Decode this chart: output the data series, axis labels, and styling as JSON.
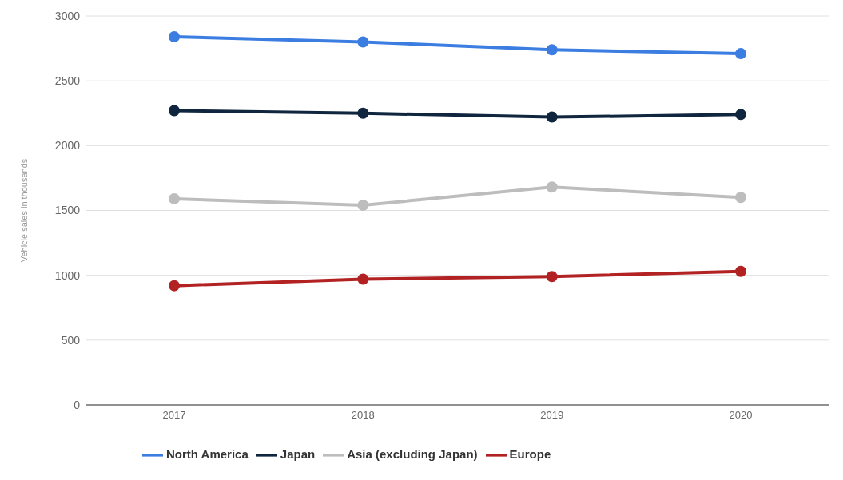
{
  "chart_data": {
    "type": "line",
    "ylabel": "Vehicle sales in thousands",
    "categories": [
      "2017",
      "2018",
      "2019",
      "2020"
    ],
    "series": [
      {
        "name": "North America",
        "color": "#3b7de0",
        "values": [
          2840,
          2800,
          2740,
          2710
        ]
      },
      {
        "name": "Japan",
        "color": "#10263f",
        "values": [
          2270,
          2250,
          2220,
          2240
        ]
      },
      {
        "name": "Asia (excluding Japan)",
        "color": "#bdbdbd",
        "values": [
          1590,
          1540,
          1680,
          1600
        ]
      },
      {
        "name": "Europe",
        "color": "#b22222",
        "values": [
          920,
          970,
          990,
          1030
        ]
      }
    ],
    "ylim": [
      0,
      3000
    ],
    "yticks": [
      0,
      500,
      1000,
      1500,
      2000,
      2500,
      3000
    ],
    "grid": "y",
    "legend": "bottom",
    "marker": "circle",
    "line_style": "solid"
  }
}
